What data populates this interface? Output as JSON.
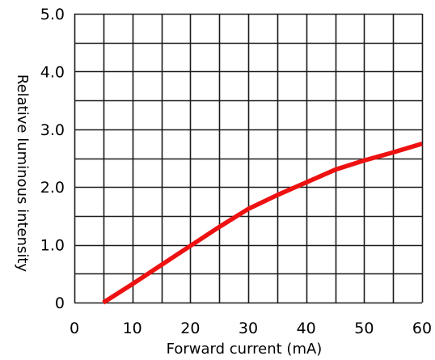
{
  "chart_data": {
    "type": "line",
    "title": "",
    "xlabel": "Forward current (mA)",
    "ylabel": "Relative luminous intensity",
    "xlim": [
      0,
      60
    ],
    "ylim": [
      0,
      5
    ],
    "grid": true,
    "x_ticks": [
      {
        "value": 0,
        "label": "0"
      },
      {
        "value": 10,
        "label": "10"
      },
      {
        "value": 20,
        "label": "20"
      },
      {
        "value": 30,
        "label": "30"
      },
      {
        "value": 40,
        "label": "40"
      },
      {
        "value": 50,
        "label": "50"
      },
      {
        "value": 60,
        "label": "60"
      }
    ],
    "y_ticks": [
      {
        "value": 0,
        "label": "0"
      },
      {
        "value": 1,
        "label": "1.0"
      },
      {
        "value": 2,
        "label": "2.0"
      },
      {
        "value": 3,
        "label": "3.0"
      },
      {
        "value": 4,
        "label": "4.0"
      },
      {
        "value": 5,
        "label": "5.0"
      }
    ],
    "grid_step_x": 5,
    "grid_step_y": 0.5,
    "series": [
      {
        "color": "#ee1111",
        "x": [
          5,
          10,
          15,
          20,
          25,
          30,
          35,
          40,
          45,
          50,
          55,
          60
        ],
        "y": [
          0.0,
          0.32,
          0.65,
          0.98,
          1.31,
          1.62,
          1.86,
          2.08,
          2.3,
          2.46,
          2.6,
          2.75
        ]
      }
    ]
  }
}
